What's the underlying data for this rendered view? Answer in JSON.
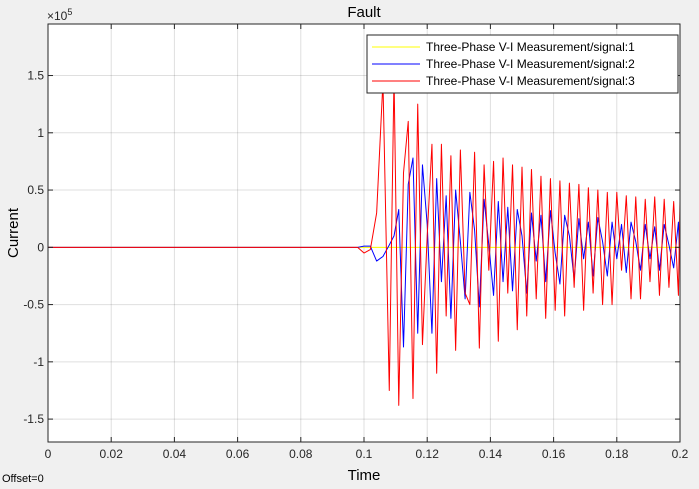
{
  "window": {
    "offset_text": "Offset=0"
  },
  "chart_data": {
    "type": "line",
    "title": "Fault",
    "xlabel": "Time",
    "ylabel": "Current",
    "y_exponent_label": "×10",
    "y_exponent_power": "5",
    "y_multiplier": 100000,
    "xlim": [
      0,
      0.2
    ],
    "ylim": [
      -1.7,
      1.95
    ],
    "x_ticks": [
      0,
      0.02,
      0.04,
      0.06,
      0.08,
      0.1,
      0.12,
      0.14,
      0.16,
      0.18,
      0.2
    ],
    "x_tick_labels": [
      "0",
      "0.02",
      "0.04",
      "0.06",
      "0.08",
      "0.1",
      "0.12",
      "0.14",
      "0.16",
      "0.18",
      "0.2"
    ],
    "y_ticks": [
      -1.5,
      -1,
      -0.5,
      0,
      0.5,
      1,
      1.5
    ],
    "y_tick_labels": [
      "-1.5",
      "-1",
      "-0.5",
      "0",
      "0.5",
      "1",
      "1.5"
    ],
    "grid": true,
    "legend_position": "top-right",
    "series": [
      {
        "name": "Three-Phase V-I Measurement/signal:1",
        "color": "#ffff00",
        "x": [
          0,
          0.1,
          0.2
        ],
        "y": [
          0,
          0,
          0
        ]
      },
      {
        "name": "Three-Phase V-I Measurement/signal:2",
        "color": "#0000ff",
        "x": [
          0,
          0.098,
          0.1,
          0.102,
          0.104,
          0.106,
          0.108,
          0.1095,
          0.111,
          0.1125,
          0.114,
          0.1155,
          0.117,
          0.1185,
          0.12,
          0.1215,
          0.123,
          0.1245,
          0.126,
          0.1275,
          0.129,
          0.1305,
          0.132,
          0.1335,
          0.135,
          0.1365,
          0.138,
          0.1395,
          0.141,
          0.1425,
          0.144,
          0.1455,
          0.147,
          0.1485,
          0.15,
          0.1515,
          0.153,
          0.1545,
          0.156,
          0.1575,
          0.159,
          0.1605,
          0.162,
          0.1635,
          0.165,
          0.1665,
          0.168,
          0.1695,
          0.171,
          0.1725,
          0.174,
          0.1755,
          0.177,
          0.1785,
          0.18,
          0.1815,
          0.183,
          0.1845,
          0.186,
          0.1875,
          0.189,
          0.1905,
          0.192,
          0.1935,
          0.195,
          0.1965,
          0.198,
          0.1995,
          0.2
        ],
        "y": [
          0,
          0,
          0.01,
          0.01,
          -0.12,
          -0.08,
          0.02,
          0.1,
          0.33,
          -0.87,
          0.55,
          0.78,
          -0.75,
          0.72,
          0.2,
          -0.75,
          0.6,
          -0.3,
          0.45,
          -0.62,
          0.5,
          0.05,
          -0.45,
          0.48,
          0.15,
          -0.52,
          0.42,
          0.02,
          -0.42,
          0.4,
          -0.3,
          0.35,
          -0.38,
          0.33,
          0.1,
          -0.4,
          0.3,
          -0.12,
          0.28,
          -0.3,
          0.32,
          -0.05,
          -0.32,
          0.28,
          0.1,
          -0.28,
          0.25,
          -0.1,
          0.22,
          -0.25,
          0.26,
          0.05,
          -0.25,
          0.22,
          -0.1,
          0.2,
          -0.22,
          0.22,
          0.05,
          -0.2,
          0.2,
          -0.1,
          0.18,
          -0.2,
          0.2,
          0.02,
          -0.18,
          0.22,
          -0.15
        ]
      },
      {
        "name": "Three-Phase V-I Measurement/signal:3",
        "color": "#ff0000",
        "x": [
          0,
          0.098,
          0.1,
          0.102,
          0.104,
          0.106,
          0.108,
          0.1095,
          0.111,
          0.1125,
          0.114,
          0.1155,
          0.117,
          0.1185,
          0.12,
          0.1215,
          0.123,
          0.1245,
          0.126,
          0.1275,
          0.129,
          0.1305,
          0.132,
          0.1335,
          0.135,
          0.1365,
          0.138,
          0.1395,
          0.141,
          0.1425,
          0.144,
          0.1455,
          0.147,
          0.1485,
          0.15,
          0.1515,
          0.153,
          0.1545,
          0.156,
          0.1575,
          0.159,
          0.1605,
          0.162,
          0.1635,
          0.165,
          0.1665,
          0.168,
          0.1695,
          0.171,
          0.1725,
          0.174,
          0.1755,
          0.177,
          0.1785,
          0.18,
          0.1815,
          0.183,
          0.1845,
          0.186,
          0.1875,
          0.189,
          0.1905,
          0.192,
          0.1935,
          0.195,
          0.1965,
          0.198,
          0.1995,
          0.2
        ],
        "y": [
          0,
          0,
          -0.05,
          -0.02,
          0.3,
          1.45,
          -1.25,
          1.5,
          -1.38,
          0.65,
          1.1,
          -1.32,
          1.25,
          -0.85,
          0.1,
          0.9,
          -1.1,
          0.9,
          -0.6,
          0.8,
          -0.9,
          0.85,
          -0.4,
          -0.5,
          0.83,
          -0.88,
          0.72,
          -0.2,
          0.75,
          -0.82,
          0.78,
          -0.4,
          0.72,
          -0.72,
          0.7,
          -0.6,
          0.68,
          -0.45,
          0.62,
          -0.62,
          0.6,
          -0.55,
          0.58,
          -0.6,
          0.56,
          -0.35,
          0.55,
          -0.55,
          0.52,
          -0.4,
          0.5,
          -0.5,
          0.48,
          -0.5,
          0.48,
          -0.2,
          0.45,
          -0.45,
          0.44,
          -0.45,
          0.42,
          -0.3,
          0.44,
          -0.42,
          0.42,
          -0.35,
          0.4,
          -0.42,
          0.4
        ]
      }
    ]
  }
}
